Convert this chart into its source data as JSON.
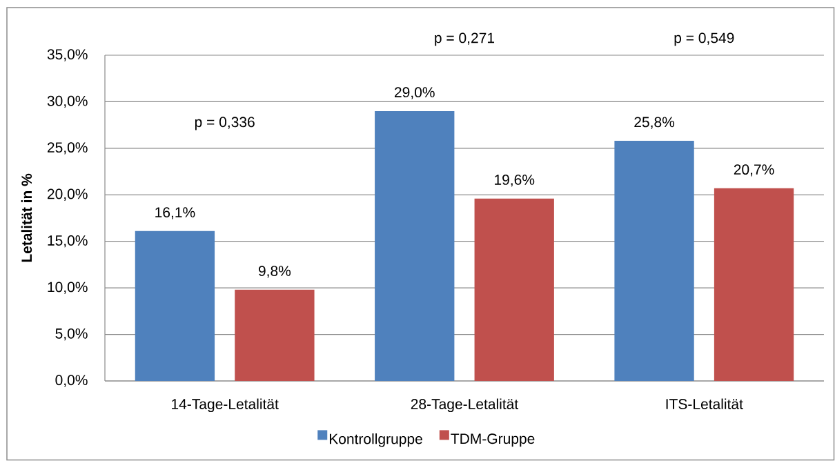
{
  "chart_data": {
    "type": "bar",
    "ylabel": "Letalität in %",
    "categories": [
      "14-Tage-Letalität",
      "28-Tage-Letalität",
      "ITS-Letalität"
    ],
    "series": [
      {
        "name": "Kontrollgruppe",
        "color": "#4f81bd",
        "values": [
          16.1,
          29.0,
          25.8
        ],
        "value_labels": [
          "16,1%",
          "29,0%",
          "25,8%"
        ]
      },
      {
        "name": "TDM-Gruppe",
        "color": "#c0504d",
        "values": [
          9.8,
          19.6,
          20.7
        ],
        "value_labels": [
          "9,8%",
          "19,6%",
          "20,7%"
        ]
      }
    ],
    "ylim": [
      0,
      35
    ],
    "yticks": [
      {
        "value": 0,
        "label": "0,0%"
      },
      {
        "value": 5,
        "label": "5,0%"
      },
      {
        "value": 10,
        "label": "10,0%"
      },
      {
        "value": 15,
        "label": "15,0%"
      },
      {
        "value": 20,
        "label": "20,0%"
      },
      {
        "value": 25,
        "label": "25,0%"
      },
      {
        "value": 30,
        "label": "30,0%"
      },
      {
        "value": 35,
        "label": "35,0%"
      }
    ],
    "grid": "y",
    "legend": "bottom",
    "annotations": [
      "p = 0,336",
      "p = 0,271",
      "p = 0,549"
    ]
  }
}
